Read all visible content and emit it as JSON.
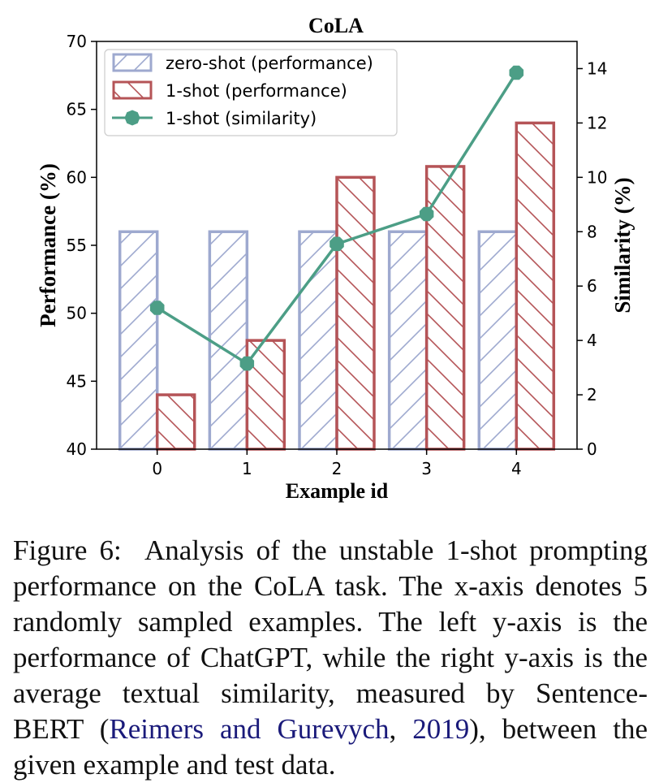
{
  "chart_data": {
    "type": "bar",
    "title": "CoLA",
    "xlabel": "Example id",
    "ylabel": "Performance (%)",
    "y2label": "Similarity (%)",
    "categories": [
      "0",
      "1",
      "2",
      "3",
      "4"
    ],
    "ylim": [
      40,
      70
    ],
    "yticks": [
      "40",
      "45",
      "50",
      "55",
      "60",
      "65",
      "70"
    ],
    "y2lim": [
      0,
      15
    ],
    "y2ticks": [
      "0",
      "2",
      "4",
      "6",
      "8",
      "10",
      "12",
      "14"
    ],
    "series": [
      {
        "name": "zero-shot (performance)",
        "kind": "bar",
        "axis": "left",
        "values": [
          56,
          56,
          56,
          56,
          56
        ],
        "color": "#9ea9cf",
        "hatch": "/"
      },
      {
        "name": "1-shot (performance)",
        "kind": "bar",
        "axis": "left",
        "values": [
          44,
          48,
          60,
          60.8,
          64
        ],
        "color": "#b55457",
        "hatch": "\\"
      },
      {
        "name": "1-shot (similarity)",
        "kind": "line",
        "axis": "right",
        "values": [
          5.2,
          3.15,
          7.55,
          8.65,
          13.85
        ],
        "color": "#4c9e86",
        "marker": "octagon"
      }
    ],
    "legend_position": "top-left",
    "grid": false
  },
  "caption": {
    "label": "Figure 6:",
    "text_before": "Analysis of the unstable 1-shot prompting performance on the CoLA task. The x-axis denotes 5 randomly sampled examples.  The left y-axis is the performance of ChatGPT, while the right y-axis is the average textual similarity, measured by Sentence-BERT (",
    "cite_authors": "Reimers and Gurevych",
    "cite_sep": ", ",
    "cite_year": "2019",
    "text_after": "), between the given example and test data."
  }
}
